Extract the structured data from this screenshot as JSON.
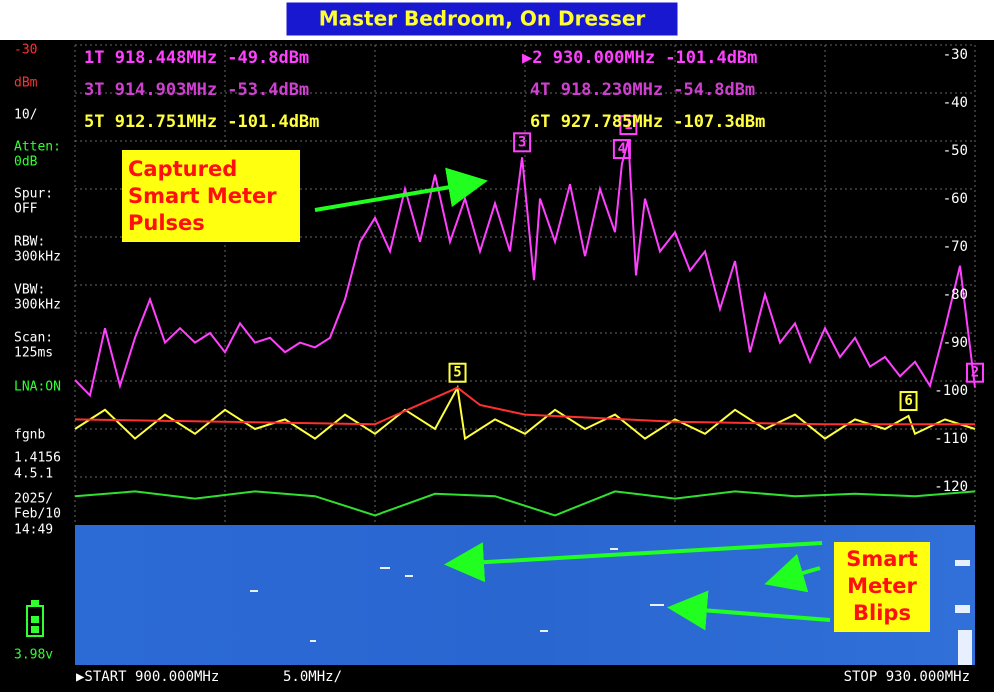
{
  "header": {
    "title": "Master Bedroom, On Dresser"
  },
  "side_panel": [
    {
      "text": "-30",
      "color": "#ff3030"
    },
    {
      "text": "dBm",
      "color": "#ff3030"
    },
    {
      "text": "10/",
      "color": "#ffffff"
    },
    {
      "text": "Atten:",
      "color": "#30ff30"
    },
    {
      "text": "0dB",
      "color": "#30ff30"
    },
    {
      "text": "Spur:",
      "color": "#ffffff"
    },
    {
      "text": "OFF",
      "color": "#ffffff"
    },
    {
      "text": "RBW:",
      "color": "#ffffff"
    },
    {
      "text": "300kHz",
      "color": "#ffffff"
    },
    {
      "text": "VBW:",
      "color": "#ffffff"
    },
    {
      "text": "300kHz",
      "color": "#ffffff"
    },
    {
      "text": "Scan:",
      "color": "#ffffff"
    },
    {
      "text": "125ms",
      "color": "#ffffff"
    },
    {
      "text": "LNA:ON",
      "color": "#30ff30"
    },
    {
      "text": "fgnb",
      "color": "#ffffff"
    },
    {
      "text": "1.4156",
      "color": "#ffffff"
    },
    {
      "text": "4.5.1",
      "color": "#ffffff"
    },
    {
      "text": "2025/",
      "color": "#ffffff"
    },
    {
      "text": "Feb/10",
      "color": "#ffffff"
    },
    {
      "text": "14:49",
      "color": "#ffffff"
    },
    {
      "text": "3.98v",
      "color": "#30ff30"
    }
  ],
  "marker_readouts": [
    {
      "text": "1T 918.448MHz -49.8dBm",
      "color": "#ff40ff"
    },
    {
      "text": "▶2 930.000MHz -101.4dBm",
      "color": "#ff40ff"
    },
    {
      "text": "3T 914.903MHz -53.4dBm",
      "color": "#d040d0"
    },
    {
      "text": "4T 918.230MHz -54.8dBm",
      "color": "#d040d0"
    },
    {
      "text": "5T 912.751MHz -101.4dBm",
      "color": "#ffff40"
    },
    {
      "text": "6T 927.785MHz -107.3dBm",
      "color": "#ffff40"
    }
  ],
  "footer": {
    "start": "▶START 900.000MHz",
    "scale": "5.0MHz/",
    "stop": "STOP 930.000MHz"
  },
  "annotations": [
    {
      "lines": [
        "Captured",
        "Smart Meter",
        "Pulses"
      ]
    },
    {
      "lines": [
        "Smart",
        "Meter",
        "Blips"
      ]
    }
  ],
  "chart_data": {
    "type": "line",
    "xlim": [
      900,
      930
    ],
    "ylim": [
      -130,
      -30
    ],
    "xticks": [
      900,
      905,
      910,
      915,
      920,
      925,
      930
    ],
    "yticks": [
      -30,
      -40,
      -50,
      -60,
      -70,
      -80,
      -90,
      -100,
      -110,
      -120
    ],
    "grid": true,
    "series": [
      {
        "color": "#ff40ff",
        "x": [
          900,
          900.5,
          901,
          901.5,
          902,
          902.5,
          903,
          903.5,
          904,
          904.5,
          905,
          905.5,
          906,
          906.5,
          907,
          907.5,
          908,
          908.5,
          909,
          909.5,
          910,
          910.5,
          911,
          911.5,
          912,
          912.5,
          913,
          913.5,
          914,
          914.5,
          914.903,
          915.3,
          915.5,
          916,
          916.5,
          917,
          917.5,
          918,
          918.23,
          918.448,
          918.7,
          919,
          919.5,
          920,
          920.5,
          921,
          921.5,
          922,
          922.5,
          923,
          923.5,
          924,
          924.5,
          925,
          925.5,
          926,
          926.5,
          927,
          927.5,
          928,
          928.5,
          929,
          929.5,
          930
        ],
        "values": [
          -99.8,
          -103,
          -89,
          -101,
          -91,
          -83,
          -92,
          -89,
          -92,
          -90,
          -94,
          -88,
          -92,
          -91,
          -94,
          -92,
          -93,
          -91,
          -83,
          -71,
          -66,
          -73,
          -60,
          -71,
          -57,
          -71,
          -62,
          -73,
          -63,
          -73,
          -53.4,
          -79,
          -62,
          -71,
          -59,
          -74,
          -60,
          -69,
          -54.8,
          -49.8,
          -78,
          -62,
          -73,
          -69,
          -77,
          -73,
          -85,
          -75,
          -94,
          -82,
          -92,
          -88,
          -96,
          -89,
          -95,
          -91,
          -97,
          -95,
          -99,
          -96,
          -101,
          -89,
          -76,
          -101.4
        ]
      },
      {
        "color": "#ffff40",
        "x": [
          900,
          901,
          902,
          903,
          904,
          905,
          906,
          907,
          908,
          909,
          910,
          911,
          912,
          912.751,
          913,
          914,
          915,
          916,
          917,
          918,
          919,
          920,
          921,
          922,
          923,
          924,
          925,
          926,
          927,
          927.785,
          928,
          929,
          930
        ],
        "values": [
          -110,
          -106,
          -112,
          -107,
          -111,
          -106,
          -110,
          -108,
          -112,
          -107,
          -111,
          -106,
          -110,
          -101.4,
          -112,
          -108,
          -111,
          -106,
          -110,
          -107,
          -112,
          -108,
          -111,
          -106,
          -110,
          -107,
          -112,
          -108,
          -110,
          -107.3,
          -111,
          -108,
          -110
        ]
      },
      {
        "color": "#ff3030",
        "x": [
          900,
          905,
          910,
          912.751,
          913.5,
          915,
          920,
          925,
          930
        ],
        "values": [
          -108,
          -108.5,
          -109,
          -101.4,
          -105,
          -107,
          -108.5,
          -109,
          -109
        ]
      },
      {
        "color": "#30e030",
        "x": [
          900,
          902,
          904,
          906,
          908,
          910,
          912,
          914,
          916,
          918,
          920,
          922,
          924,
          926,
          928,
          930
        ],
        "values": [
          -124,
          -123,
          -124.5,
          -123,
          -124,
          -128,
          -123.5,
          -124,
          -128,
          -123,
          -124.5,
          -123,
          -124,
          -123.5,
          -124,
          -123
        ]
      }
    ],
    "markers": [
      {
        "label": "1",
        "x": 918.448,
        "value": -49.8,
        "color": "#ff40ff"
      },
      {
        "label": "2",
        "x": 930,
        "value": -101.4,
        "color": "#ff40ff"
      },
      {
        "label": "3",
        "x": 914.903,
        "value": -53.4,
        "color": "#ff40ff"
      },
      {
        "label": "4",
        "x": 918.23,
        "value": -54.8,
        "color": "#ff40ff"
      },
      {
        "label": "5",
        "x": 912.751,
        "value": -101.4,
        "color": "#ffff40"
      },
      {
        "label": "6",
        "x": 927.785,
        "value": -107.3,
        "color": "#ffff40"
      }
    ]
  }
}
